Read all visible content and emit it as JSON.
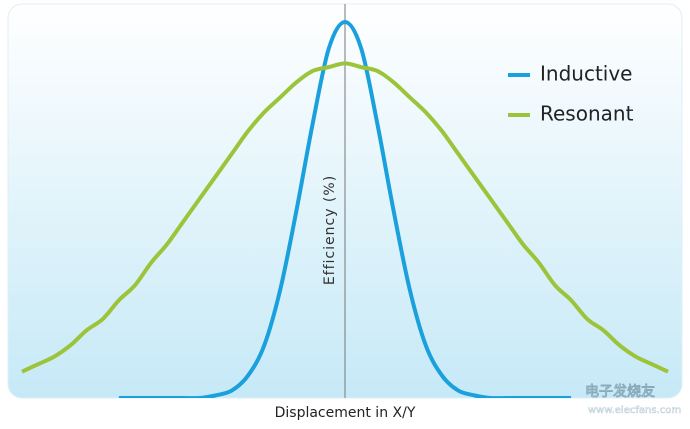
{
  "chart_data": {
    "type": "line",
    "x_label": "Displacement in X/Y",
    "y_label": "Efficiency (%)",
    "x": [
      -10,
      -9.5,
      -9,
      -8.5,
      -8,
      -7.5,
      -7,
      -6.5,
      -6,
      -5.5,
      -5,
      -4.5,
      -4,
      -3.5,
      -3,
      -2.5,
      -2,
      -1.5,
      -1,
      -0.5,
      0,
      0.5,
      1,
      1.5,
      2,
      2.5,
      3,
      3.5,
      4,
      4.5,
      5,
      5.5,
      6,
      6.5,
      7,
      7.5,
      8,
      8.5,
      9,
      9.5,
      10
    ],
    "xlim": [
      -10,
      10
    ],
    "ylim": [
      0,
      100
    ],
    "legend": "upper right",
    "series": [
      {
        "name": "Inductive",
        "color": "#1aa0dc",
        "values": [
          null,
          null,
          null,
          null,
          null,
          null,
          0,
          0,
          0,
          0,
          0,
          0,
          0.7,
          2,
          6,
          14,
          29,
          50,
          73,
          93,
          100,
          93,
          73,
          50,
          29,
          14,
          6,
          2,
          0.7,
          0,
          0,
          0,
          0,
          0,
          0,
          null,
          null,
          null,
          null,
          null,
          null
        ]
      },
      {
        "name": "Resonant",
        "color": "#9cc43a",
        "values": [
          7,
          9,
          11,
          14,
          18,
          21,
          26,
          30,
          36,
          41,
          47,
          53,
          59,
          65,
          71,
          76,
          80,
          84,
          87,
          88,
          89,
          88,
          87,
          84,
          80,
          76,
          71,
          65,
          59,
          53,
          47,
          41,
          36,
          30,
          26,
          21,
          18,
          14,
          11,
          9,
          7
        ]
      }
    ]
  },
  "watermark": {
    "brand": "电子发烧友",
    "url": "www.elecfans.com"
  }
}
